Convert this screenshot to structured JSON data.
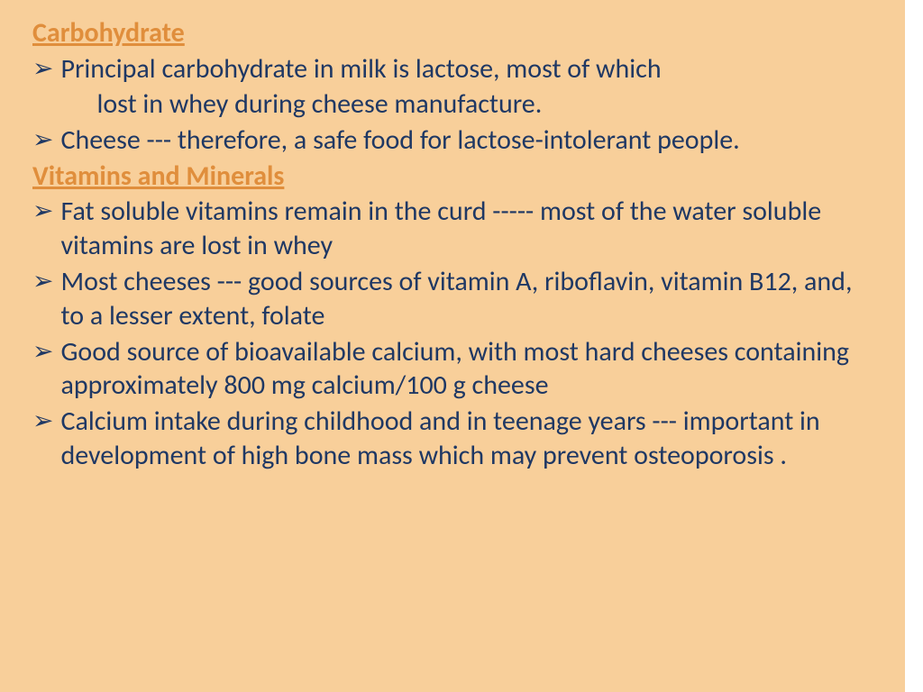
{
  "colors": {
    "slide_bg": "#f8cf9a",
    "heading_color": "#e08e3c",
    "body_color": "#1f3864",
    "arrow_color": "#1f3864"
  },
  "arrow_glyph": "➢",
  "section1": {
    "heading": "Carbohydrate",
    "bullets": [
      " Principal carbohydrate in milk is lactose, most of which",
      "Cheese --- therefore, a safe food for lactose-intolerant people."
    ],
    "cont1": "lost in whey during cheese manufacture."
  },
  "section2": {
    "heading": "Vitamins and Minerals",
    "bullets": [
      "Fat soluble vitamins remain in the curd ----- most of the water soluble vitamins are lost in whey",
      "Most cheeses --- good sources of vitamin A, riboflavin, vitamin B12, and, to a lesser extent, folate",
      "Good source of bioavailable calcium, with most hard cheeses containing approximately 800 mg calcium/100 g cheese",
      "Calcium intake during childhood and in teenage years --- important in development of high bone mass which may prevent osteoporosis ."
    ]
  }
}
